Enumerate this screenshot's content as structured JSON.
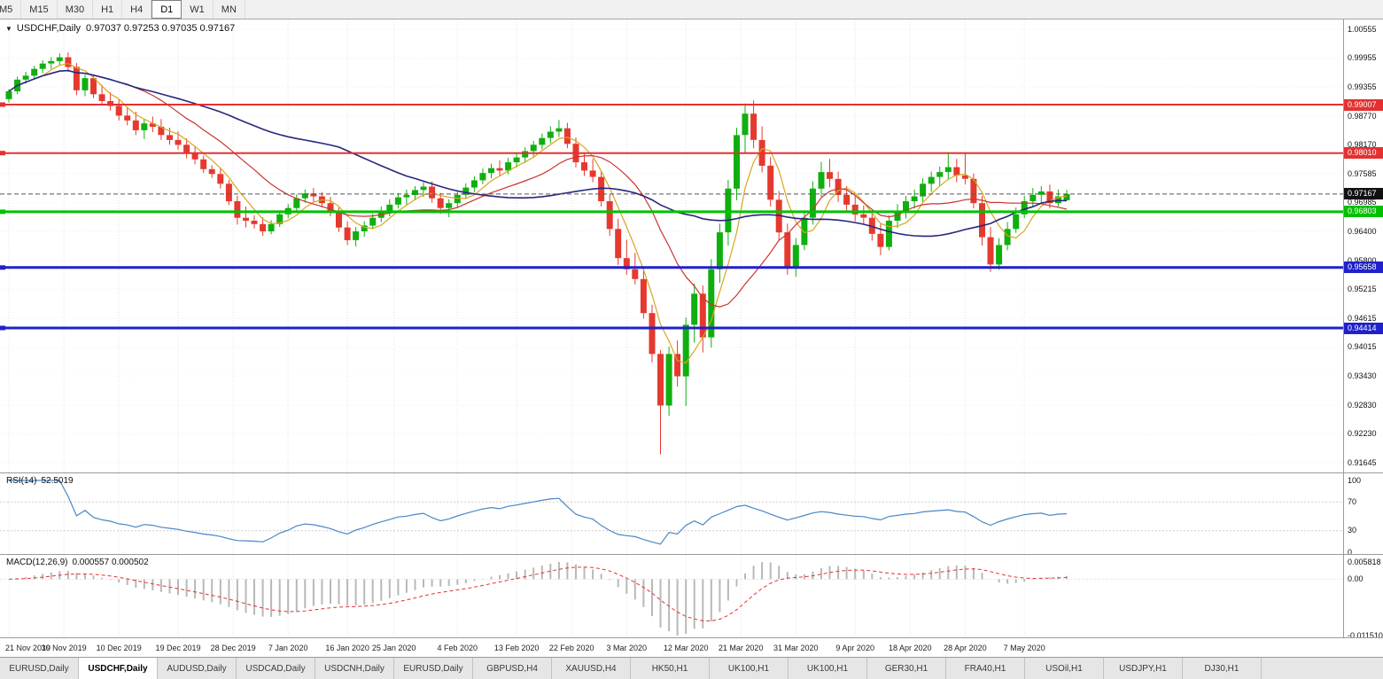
{
  "toolbar": {
    "timeframes": [
      "M5",
      "M15",
      "M30",
      "H1",
      "H4",
      "D1",
      "W1",
      "MN"
    ],
    "active": "D1"
  },
  "title": {
    "symbol": "USDCHF,Daily",
    "ohlc": "0.97037 0.97253 0.97035 0.97167"
  },
  "chart_data": {
    "type": "candlestick",
    "symbol": "USDCHF",
    "timeframe": "Daily",
    "current_price": "0.97167",
    "candle_up_color": "#0faf0f",
    "candle_down_color": "#e5392f",
    "y_axis_ticks": [
      "1.00555",
      "0.99955",
      "0.99355",
      "0.98770",
      "0.98170",
      "0.97585",
      "0.96985",
      "0.96400",
      "0.95800",
      "0.95215",
      "0.94615",
      "0.94015",
      "0.93430",
      "0.92830",
      "0.92230",
      "0.91645"
    ],
    "x_ticks": [
      {
        "label": "21 Nov 2019",
        "bar": 0
      },
      {
        "label": "30 Nov 2019",
        "bar": 6.5
      },
      {
        "label": "10 Dec 2019",
        "bar": 13
      },
      {
        "label": "19 Dec 2019",
        "bar": 20
      },
      {
        "label": "28 Dec 2019",
        "bar": 26.5
      },
      {
        "label": "7 Jan 2020",
        "bar": 33
      },
      {
        "label": "16 Jan 2020",
        "bar": 40
      },
      {
        "label": "25 Jan 2020",
        "bar": 45.5
      },
      {
        "label": "4 Feb 2020",
        "bar": 53
      },
      {
        "label": "13 Feb 2020",
        "bar": 60
      },
      {
        "label": "22 Feb 2020",
        "bar": 66.5
      },
      {
        "label": "3 Mar 2020",
        "bar": 73
      },
      {
        "label": "12 Mar 2020",
        "bar": 80
      },
      {
        "label": "21 Mar 2020",
        "bar": 86.5
      },
      {
        "label": "31 Mar 2020",
        "bar": 93
      },
      {
        "label": "9 Apr 2020",
        "bar": 100
      },
      {
        "label": "18 Apr 2020",
        "bar": 106.5
      },
      {
        "label": "28 Apr 2020",
        "bar": 113
      },
      {
        "label": "7 May 2020",
        "bar": 120
      }
    ],
    "hlines": [
      {
        "price": 0.99007,
        "label": "0.99007",
        "color": "#e53030",
        "width": 2
      },
      {
        "price": 0.9801,
        "label": "0.98010",
        "color": "#e53030",
        "width": 2
      },
      {
        "price": 0.96803,
        "label": "0.96803",
        "color": "#00c000",
        "width": 3
      },
      {
        "price": 0.95658,
        "label": "0.95658",
        "color": "#2020cc",
        "width": 3
      },
      {
        "price": 0.94414,
        "label": "0.94414",
        "color": "#2020cc",
        "width": 3
      }
    ],
    "moving_averages": [
      {
        "period": 5,
        "color": "#d9a520"
      },
      {
        "period": 14,
        "color": "#cc3333"
      },
      {
        "period": 40,
        "color": "#26267e"
      }
    ],
    "indicators": {
      "rsi": {
        "name": "RSI(14)",
        "period": 14,
        "value": "52.5019",
        "levels": [
          "100",
          "70",
          "30",
          "0"
        ],
        "color": "#4a86c8"
      },
      "macd": {
        "name": "MACD(12,26,9)",
        "fast": 12,
        "slow": 26,
        "signal": 9,
        "values": "0.000557 0.000502",
        "axis_ticks": [
          "0.005818",
          "0.00",
          "-0.011510"
        ],
        "hist_color": "#b8b8b8",
        "signal_color": "#e53030"
      }
    },
    "ohlc": [
      [
        0.9912,
        0.9932,
        0.9905,
        0.9928
      ],
      [
        0.9928,
        0.9958,
        0.9922,
        0.9952
      ],
      [
        0.9952,
        0.9968,
        0.9944,
        0.996
      ],
      [
        0.996,
        0.998,
        0.9954,
        0.9974
      ],
      [
        0.9974,
        0.9992,
        0.9965,
        0.9985
      ],
      [
        0.9985,
        0.9998,
        0.9974,
        0.999
      ],
      [
        0.999,
        1.0006,
        0.9982,
        0.9998
      ],
      [
        0.9998,
        1.0008,
        0.9968,
        0.9978
      ],
      [
        0.9978,
        0.9986,
        0.992,
        0.993
      ],
      [
        0.993,
        0.9962,
        0.9918,
        0.9955
      ],
      [
        0.9955,
        0.9961,
        0.9914,
        0.9922
      ],
      [
        0.9922,
        0.9941,
        0.99,
        0.9908
      ],
      [
        0.9908,
        0.9926,
        0.9888,
        0.9898
      ],
      [
        0.9898,
        0.9911,
        0.9868,
        0.9878
      ],
      [
        0.9878,
        0.9896,
        0.9858,
        0.9868
      ],
      [
        0.9868,
        0.9886,
        0.9838,
        0.9848
      ],
      [
        0.9848,
        0.9871,
        0.983,
        0.9862
      ],
      [
        0.9862,
        0.9876,
        0.9844,
        0.9855
      ],
      [
        0.9855,
        0.9871,
        0.9828,
        0.9838
      ],
      [
        0.9838,
        0.9853,
        0.9818,
        0.9828
      ],
      [
        0.9828,
        0.9846,
        0.9808,
        0.9818
      ],
      [
        0.9818,
        0.9831,
        0.979,
        0.98
      ],
      [
        0.98,
        0.9816,
        0.9778,
        0.9788
      ],
      [
        0.9788,
        0.9796,
        0.976,
        0.9768
      ],
      [
        0.9768,
        0.9776,
        0.975,
        0.9758
      ],
      [
        0.9758,
        0.9769,
        0.9728,
        0.9738
      ],
      [
        0.9738,
        0.9746,
        0.9694,
        0.9702
      ],
      [
        0.9702,
        0.9713,
        0.9654,
        0.9668
      ],
      [
        0.9668,
        0.9691,
        0.9648,
        0.9662
      ],
      [
        0.9662,
        0.9673,
        0.9646,
        0.9655
      ],
      [
        0.9655,
        0.9669,
        0.9631,
        0.964
      ],
      [
        0.964,
        0.9663,
        0.9634,
        0.9655
      ],
      [
        0.9655,
        0.9683,
        0.9649,
        0.9675
      ],
      [
        0.9675,
        0.9696,
        0.9667,
        0.9688
      ],
      [
        0.9688,
        0.9716,
        0.9681,
        0.9708
      ],
      [
        0.9708,
        0.9726,
        0.9699,
        0.9718
      ],
      [
        0.9718,
        0.9729,
        0.9701,
        0.9712
      ],
      [
        0.9712,
        0.9721,
        0.9689,
        0.9698
      ],
      [
        0.9698,
        0.9711,
        0.9671,
        0.968
      ],
      [
        0.968,
        0.9689,
        0.9639,
        0.9648
      ],
      [
        0.9648,
        0.9661,
        0.9612,
        0.9622
      ],
      [
        0.9622,
        0.9649,
        0.9609,
        0.964
      ],
      [
        0.964,
        0.9661,
        0.9629,
        0.9652
      ],
      [
        0.9652,
        0.9676,
        0.9644,
        0.9668
      ],
      [
        0.9668,
        0.9691,
        0.9659,
        0.9682
      ],
      [
        0.9682,
        0.9706,
        0.9671,
        0.9695
      ],
      [
        0.9695,
        0.9719,
        0.9687,
        0.971
      ],
      [
        0.971,
        0.9726,
        0.9694,
        0.9715
      ],
      [
        0.9715,
        0.9733,
        0.9704,
        0.9725
      ],
      [
        0.9725,
        0.9741,
        0.9711,
        0.9732
      ],
      [
        0.9732,
        0.9743,
        0.9699,
        0.9708
      ],
      [
        0.9708,
        0.9719,
        0.9676,
        0.9688
      ],
      [
        0.9688,
        0.9706,
        0.9669,
        0.9698
      ],
      [
        0.9698,
        0.9723,
        0.9689,
        0.9715
      ],
      [
        0.9715,
        0.9739,
        0.9707,
        0.973
      ],
      [
        0.973,
        0.9753,
        0.9721,
        0.9745
      ],
      [
        0.9745,
        0.9769,
        0.9737,
        0.976
      ],
      [
        0.976,
        0.9779,
        0.9749,
        0.977
      ],
      [
        0.977,
        0.9786,
        0.9754,
        0.9765
      ],
      [
        0.9765,
        0.9791,
        0.9757,
        0.9782
      ],
      [
        0.9782,
        0.9801,
        0.9771,
        0.9792
      ],
      [
        0.9792,
        0.9813,
        0.9781,
        0.9805
      ],
      [
        0.9805,
        0.9826,
        0.9794,
        0.9818
      ],
      [
        0.9818,
        0.9841,
        0.9809,
        0.9832
      ],
      [
        0.9832,
        0.9856,
        0.9821,
        0.9845
      ],
      [
        0.9845,
        0.9869,
        0.9834,
        0.9852
      ],
      [
        0.9852,
        0.9863,
        0.9811,
        0.982
      ],
      [
        0.982,
        0.9833,
        0.9771,
        0.9782
      ],
      [
        0.9782,
        0.9801,
        0.9754,
        0.9765
      ],
      [
        0.9765,
        0.9789,
        0.9741,
        0.9752
      ],
      [
        0.9752,
        0.9763,
        0.9691,
        0.9702
      ],
      [
        0.9702,
        0.9716,
        0.9631,
        0.9645
      ],
      [
        0.9645,
        0.9666,
        0.9571,
        0.9585
      ],
      [
        0.9585,
        0.9623,
        0.9551,
        0.9562
      ],
      [
        0.9562,
        0.9596,
        0.9531,
        0.9542
      ],
      [
        0.9542,
        0.9563,
        0.9461,
        0.9472
      ],
      [
        0.9472,
        0.9489,
        0.9371,
        0.9388
      ],
      [
        0.9388,
        0.9396,
        0.9182,
        0.9282
      ],
      [
        0.9282,
        0.9403,
        0.9261,
        0.9388
      ],
      [
        0.9388,
        0.9416,
        0.9321,
        0.9342
      ],
      [
        0.9342,
        0.9463,
        0.9281,
        0.9448
      ],
      [
        0.9448,
        0.9533,
        0.9411,
        0.9512
      ],
      [
        0.9512,
        0.9529,
        0.9391,
        0.9422
      ],
      [
        0.9422,
        0.9583,
        0.9401,
        0.9562
      ],
      [
        0.9562,
        0.9656,
        0.9534,
        0.9638
      ],
      [
        0.9638,
        0.9746,
        0.9611,
        0.9728
      ],
      [
        0.9728,
        0.9853,
        0.9704,
        0.9838
      ],
      [
        0.9838,
        0.9903,
        0.9801,
        0.9882
      ],
      [
        0.9882,
        0.9909,
        0.9811,
        0.9828
      ],
      [
        0.9828,
        0.9856,
        0.9761,
        0.9775
      ],
      [
        0.9775,
        0.9793,
        0.9691,
        0.9705
      ],
      [
        0.9705,
        0.9723,
        0.9621,
        0.9638
      ],
      [
        0.9638,
        0.9656,
        0.9551,
        0.9565
      ],
      [
        0.9565,
        0.9626,
        0.9547,
        0.9612
      ],
      [
        0.9612,
        0.9683,
        0.9601,
        0.9668
      ],
      [
        0.9668,
        0.9743,
        0.9654,
        0.9728
      ],
      [
        0.9728,
        0.9783,
        0.9711,
        0.9762
      ],
      [
        0.9762,
        0.9789,
        0.9731,
        0.9748
      ],
      [
        0.9748,
        0.9763,
        0.9701,
        0.9715
      ],
      [
        0.9715,
        0.9733,
        0.9681,
        0.9695
      ],
      [
        0.9695,
        0.9713,
        0.9661,
        0.9675
      ],
      [
        0.9675,
        0.9693,
        0.9654,
        0.9668
      ],
      [
        0.9668,
        0.9679,
        0.9621,
        0.9635
      ],
      [
        0.9635,
        0.9656,
        0.9591,
        0.9608
      ],
      [
        0.9608,
        0.9673,
        0.9601,
        0.9662
      ],
      [
        0.9662,
        0.9696,
        0.9647,
        0.9682
      ],
      [
        0.9682,
        0.9713,
        0.9667,
        0.9702
      ],
      [
        0.9702,
        0.9726,
        0.9687,
        0.9712
      ],
      [
        0.9712,
        0.9749,
        0.9701,
        0.9738
      ],
      [
        0.9738,
        0.9763,
        0.9721,
        0.9752
      ],
      [
        0.9752,
        0.9773,
        0.9734,
        0.9762
      ],
      [
        0.9762,
        0.9803,
        0.9747,
        0.9772
      ],
      [
        0.9772,
        0.9789,
        0.9741,
        0.9755
      ],
      [
        0.9755,
        0.9803,
        0.9737,
        0.9748
      ],
      [
        0.9748,
        0.9759,
        0.9687,
        0.9698
      ],
      [
        0.9698,
        0.9713,
        0.9611,
        0.9628
      ],
      [
        0.9628,
        0.9649,
        0.9557,
        0.9572
      ],
      [
        0.9572,
        0.9626,
        0.9561,
        0.9612
      ],
      [
        0.9612,
        0.9659,
        0.9601,
        0.9645
      ],
      [
        0.9645,
        0.9689,
        0.9637,
        0.9675
      ],
      [
        0.9675,
        0.9713,
        0.9667,
        0.9702
      ],
      [
        0.9702,
        0.9729,
        0.9691,
        0.9715
      ],
      [
        0.9715,
        0.9733,
        0.9697,
        0.9722
      ],
      [
        0.9722,
        0.9736,
        0.9687,
        0.9698
      ],
      [
        0.9698,
        0.9726,
        0.9691,
        0.9712
      ],
      [
        0.97037,
        0.97253,
        0.97035,
        0.97167
      ]
    ]
  },
  "tabs": {
    "active_index": 1,
    "items": [
      "EURUSD,Daily",
      "USDCHF,Daily",
      "AUDUSD,Daily",
      "USDCAD,Daily",
      "USDCNH,Daily",
      "EURUSD,Daily",
      "GBPUSD,H4",
      "XAUUSD,H4",
      "HK50,H1",
      "UK100,H1",
      "UK100,H1",
      "GER30,H1",
      "FRA40,H1",
      "USOil,H1",
      "USDJPY,H1",
      "DJ30,H1"
    ]
  }
}
